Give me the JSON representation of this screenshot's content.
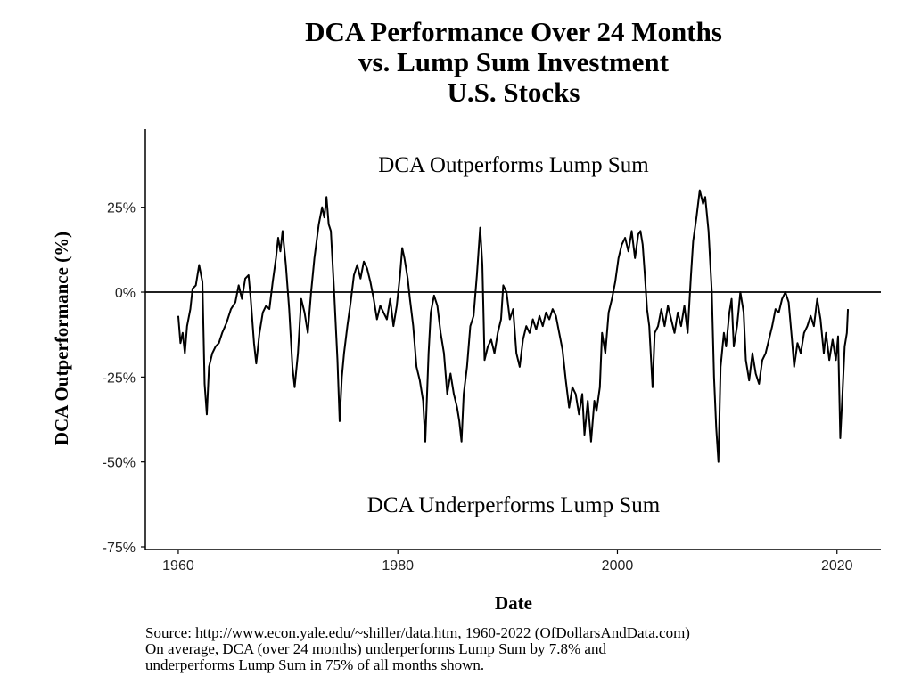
{
  "chart_data": {
    "type": "line",
    "title": [
      "DCA Performance Over 24 Months",
      "vs. Lump Sum Investment",
      "U.S. Stocks"
    ],
    "xlabel": "Date",
    "ylabel": "DCA Outperformance (%)",
    "annotations": [
      "DCA Outperforms Lump Sum",
      "DCA Underperforms Lump Sum"
    ],
    "caption": [
      "Source:  http://www.econ.yale.edu/~shiller/data.htm, 1960-2022 (OfDollarsAndData.com)",
      "On average, DCA (over 24 months) underperforms Lump Sum by 7.8% and",
      "underperforms Lump Sum in 75% of all months shown."
    ],
    "color": "#000000",
    "hline": 0,
    "grid": false,
    "xlim": [
      1957,
      2024
    ],
    "xticks": [
      1960,
      1980,
      2000,
      2020
    ],
    "ylim": [
      -75,
      48
    ],
    "yticks": [
      {
        "value": -75,
        "label": "-75%"
      },
      {
        "value": -50,
        "label": "-50%"
      },
      {
        "value": -25,
        "label": "-25%"
      },
      {
        "value": 0,
        "label": "0%"
      },
      {
        "value": 25,
        "label": "25%"
      }
    ],
    "x": [
      1960.0,
      1960.2,
      1960.4,
      1960.6,
      1960.8,
      1961.1,
      1961.3,
      1961.6,
      1961.9,
      1962.2,
      1962.4,
      1962.6,
      1962.8,
      1963.1,
      1963.4,
      1963.7,
      1964.0,
      1964.4,
      1964.8,
      1965.2,
      1965.5,
      1965.8,
      1966.1,
      1966.4,
      1966.6,
      1966.9,
      1967.1,
      1967.4,
      1967.7,
      1968.0,
      1968.3,
      1968.6,
      1968.9,
      1969.1,
      1969.3,
      1969.5,
      1969.8,
      1970.1,
      1970.4,
      1970.6,
      1970.9,
      1971.2,
      1971.5,
      1971.8,
      1972.1,
      1972.4,
      1972.8,
      1973.1,
      1973.3,
      1973.5,
      1973.7,
      1973.9,
      1974.2,
      1974.5,
      1974.7,
      1974.9,
      1975.1,
      1975.4,
      1975.7,
      1976.0,
      1976.3,
      1976.6,
      1976.9,
      1977.2,
      1977.5,
      1977.8,
      1978.1,
      1978.4,
      1978.7,
      1979.0,
      1979.3,
      1979.6,
      1979.9,
      1980.2,
      1980.4,
      1980.6,
      1980.9,
      1981.1,
      1981.4,
      1981.7,
      1982.0,
      1982.3,
      1982.5,
      1982.8,
      1983.0,
      1983.3,
      1983.6,
      1983.9,
      1984.2,
      1984.5,
      1984.8,
      1985.1,
      1985.4,
      1985.6,
      1985.8,
      1986.0,
      1986.3,
      1986.6,
      1986.9,
      1987.2,
      1987.5,
      1987.7,
      1987.9,
      1988.2,
      1988.5,
      1988.8,
      1989.1,
      1989.4,
      1989.6,
      1989.9,
      1990.2,
      1990.5,
      1990.8,
      1991.1,
      1991.4,
      1991.7,
      1992.0,
      1992.3,
      1992.6,
      1992.9,
      1993.2,
      1993.5,
      1993.8,
      1994.1,
      1994.4,
      1994.7,
      1995.0,
      1995.3,
      1995.6,
      1995.9,
      1996.2,
      1996.5,
      1996.8,
      1997.0,
      1997.3,
      1997.6,
      1997.9,
      1998.1,
      1998.4,
      1998.6,
      1998.9,
      1999.2,
      1999.5,
      1999.8,
      2000.1,
      2000.4,
      2000.7,
      2001.0,
      2001.3,
      2001.6,
      2001.9,
      2002.1,
      2002.3,
      2002.5,
      2002.7,
      2002.9,
      2003.2,
      2003.4,
      2003.7,
      2004.0,
      2004.3,
      2004.6,
      2004.9,
      2005.2,
      2005.5,
      2005.8,
      2006.1,
      2006.4,
      2006.7,
      2006.9,
      2007.2,
      2007.5,
      2007.8,
      2008.0,
      2008.3,
      2008.6,
      2008.8,
      2009.0,
      2009.2,
      2009.4,
      2009.7,
      2009.9,
      2010.2,
      2010.4,
      2010.6,
      2010.9,
      2011.2,
      2011.5,
      2011.7,
      2012.0,
      2012.3,
      2012.6,
      2012.9,
      2013.2,
      2013.5,
      2013.8,
      2014.1,
      2014.4,
      2014.7,
      2015.0,
      2015.3,
      2015.6,
      2015.9,
      2016.1,
      2016.4,
      2016.7,
      2017.0,
      2017.3,
      2017.6,
      2017.9,
      2018.2,
      2018.5,
      2018.8,
      2019.0,
      2019.3,
      2019.6,
      2019.9,
      2020.1,
      2020.3,
      2020.5,
      2020.7,
      2020.9,
      2021.0
    ],
    "values": [
      -7,
      -15,
      -12,
      -18,
      -10,
      -5,
      1,
      2,
      8,
      3,
      -27,
      -36,
      -22,
      -18,
      -16,
      -15,
      -12,
      -9,
      -5,
      -3,
      2,
      -2,
      4,
      5,
      -2,
      -15,
      -21,
      -12,
      -6,
      -4,
      -5,
      3,
      10,
      16,
      12,
      18,
      8,
      -5,
      -22,
      -28,
      -18,
      -2,
      -6,
      -12,
      0,
      10,
      20,
      25,
      22,
      28,
      20,
      18,
      0,
      -20,
      -38,
      -25,
      -18,
      -10,
      -3,
      5,
      8,
      4,
      9,
      7,
      3,
      -2,
      -8,
      -4,
      -6,
      -8,
      -2,
      -10,
      -4,
      5,
      13,
      10,
      4,
      -2,
      -10,
      -22,
      -26,
      -32,
      -44,
      -18,
      -6,
      -1,
      -4,
      -12,
      -18,
      -30,
      -24,
      -30,
      -34,
      -38,
      -44,
      -30,
      -22,
      -10,
      -7,
      5,
      19,
      8,
      -20,
      -16,
      -14,
      -18,
      -12,
      -8,
      2,
      0,
      -8,
      -5,
      -18,
      -22,
      -14,
      -10,
      -12,
      -8,
      -11,
      -7,
      -10,
      -6,
      -8,
      -5,
      -7,
      -12,
      -17,
      -26,
      -34,
      -28,
      -30,
      -36,
      -30,
      -42,
      -32,
      -44,
      -32,
      -35,
      -28,
      -12,
      -18,
      -6,
      -2,
      3,
      10,
      14,
      16,
      12,
      18,
      10,
      17,
      18,
      14,
      5,
      -5,
      -10,
      -28,
      -12,
      -10,
      -5,
      -10,
      -4,
      -8,
      -12,
      -6,
      -10,
      -4,
      -12,
      5,
      15,
      22,
      30,
      26,
      28,
      18,
      0,
      -25,
      -40,
      -50,
      -22,
      -12,
      -16,
      -6,
      -2,
      -16,
      -10,
      0,
      -6,
      -20,
      -26,
      -18,
      -24,
      -27,
      -20,
      -18,
      -14,
      -10,
      -5,
      -6,
      -2,
      0,
      -3,
      -14,
      -22,
      -15,
      -18,
      -12,
      -10,
      -7,
      -10,
      -2,
      -8,
      -18,
      -12,
      -20,
      -14,
      -20,
      -13,
      -43,
      -30,
      -16,
      -12,
      -5
    ]
  }
}
